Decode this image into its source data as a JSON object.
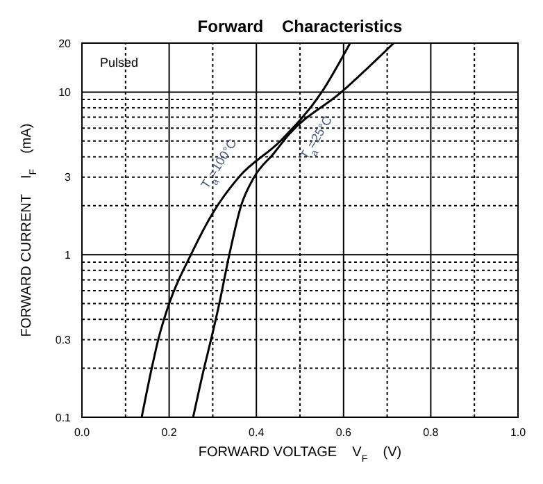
{
  "chart_data": {
    "type": "line",
    "title": "Forward    Characteristics",
    "xlabel": "FORWARD VOLTAGE    V$_{F}$    (V)",
    "ylabel": "FORWARD CURRENT    I$_{F}$    (mA)",
    "annotations": [
      "Pulsed"
    ],
    "series": [
      {
        "name": "T$_{a}$=100°C",
        "color": "#000000",
        "x": [
          0.137,
          0.16,
          0.175,
          0.2,
          0.25,
          0.3,
          0.36,
          0.455,
          0.55,
          0.615
        ],
        "values": [
          0.1,
          0.2,
          0.3,
          0.5,
          1,
          1.8,
          3,
          5,
          10,
          20
        ]
      },
      {
        "name": "T$_{a}$=25°C",
        "color": "#000000",
        "x": [
          0.255,
          0.28,
          0.296,
          0.315,
          0.338,
          0.365,
          0.395,
          0.44,
          0.475,
          0.595,
          0.715
        ],
        "values": [
          0.1,
          0.2,
          0.3,
          0.5,
          1,
          2,
          3,
          4.2,
          5.5,
          10,
          20
        ]
      }
    ],
    "xlim": [
      0,
      1
    ],
    "ylim": [
      0.1,
      20
    ],
    "log": "y",
    "grid": true,
    "marker": "none",
    "line_style": "solid",
    "xticks": [
      {
        "value": 0,
        "label": "0.0"
      },
      {
        "value": 0.1,
        "label": null
      },
      {
        "value": 0.2,
        "label": "0.2"
      },
      {
        "value": 0.3,
        "label": null
      },
      {
        "value": 0.4,
        "label": "0.4"
      },
      {
        "value": 0.5,
        "label": null
      },
      {
        "value": 0.6,
        "label": "0.6"
      },
      {
        "value": 0.7,
        "label": null
      },
      {
        "value": 0.8,
        "label": "0.8"
      },
      {
        "value": 0.9,
        "label": null
      },
      {
        "value": 1,
        "label": "1.0"
      }
    ],
    "yticks": [
      0.1,
      {
        "value": 0.2,
        "label": null
      },
      0.3,
      {
        "value": 0.4,
        "label": null
      },
      {
        "value": 0.5,
        "label": null
      },
      {
        "value": 0.6,
        "label": null
      },
      {
        "value": 0.7,
        "label": null
      },
      {
        "value": 0.8,
        "label": null
      },
      {
        "value": 0.9,
        "label": null
      },
      1,
      {
        "value": 2,
        "label": null
      },
      3,
      {
        "value": 4,
        "label": null
      },
      {
        "value": 5,
        "label": null
      },
      {
        "value": 6,
        "label": null
      },
      {
        "value": 7,
        "label": null
      },
      {
        "value": 8,
        "label": null
      },
      {
        "value": 9,
        "label": null
      },
      10,
      20
    ]
  }
}
